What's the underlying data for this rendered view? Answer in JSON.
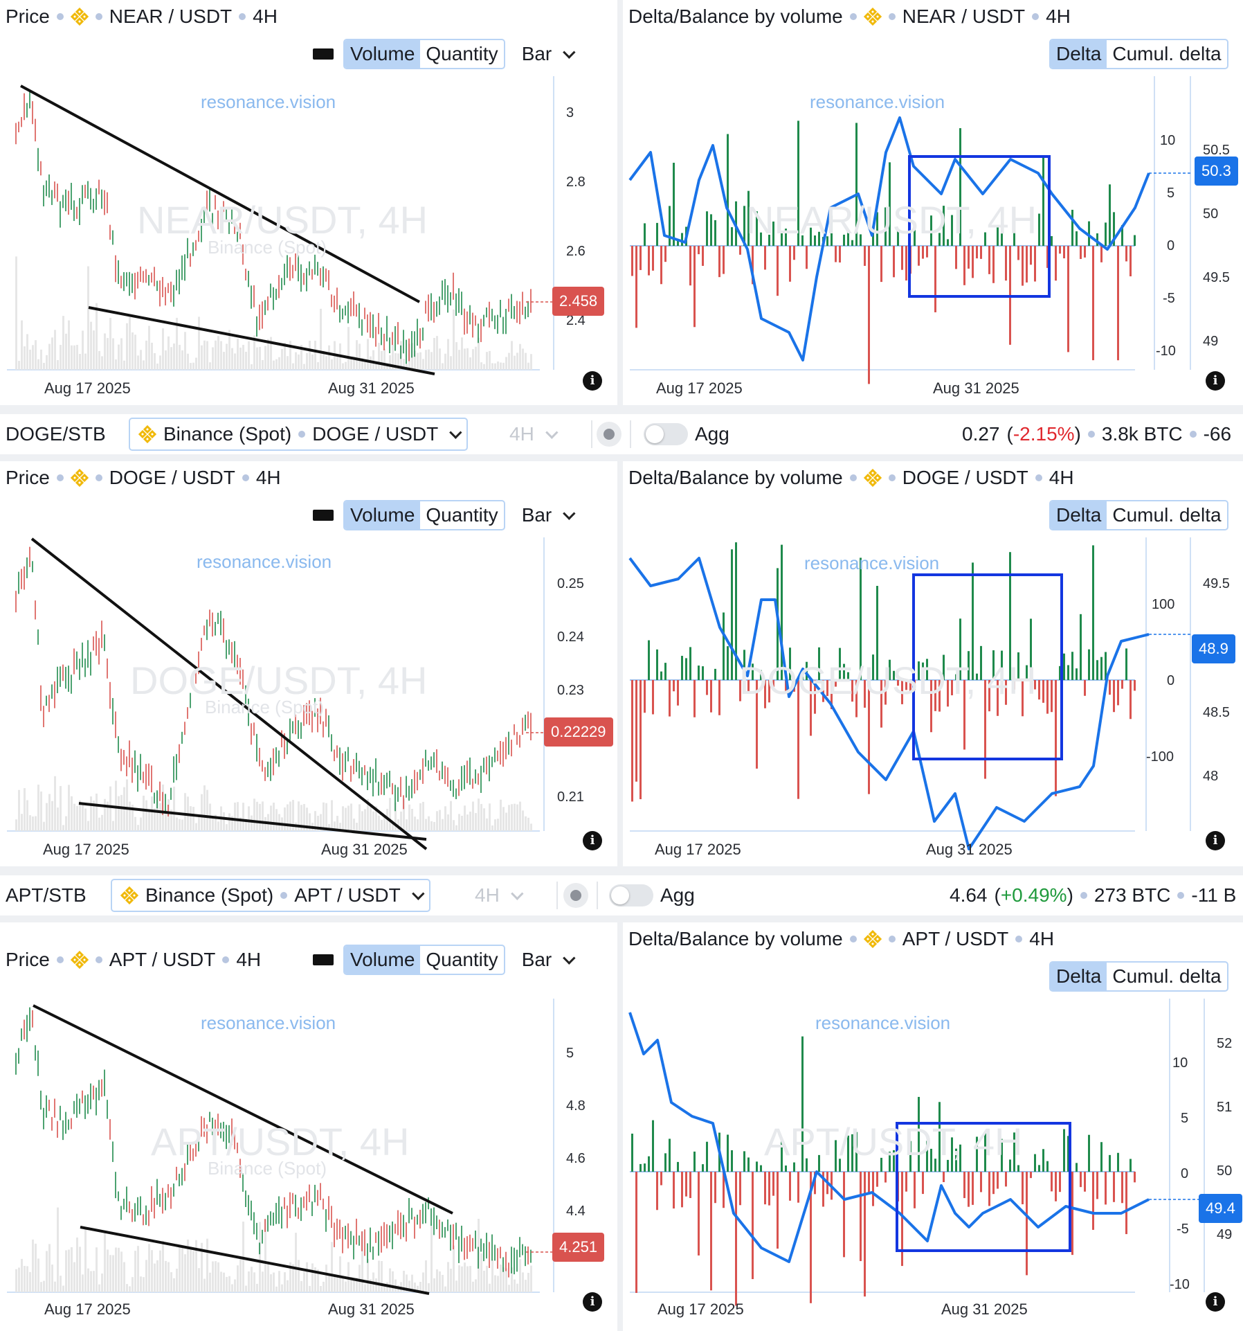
{
  "common": {
    "price_label": "Price",
    "delta_title": "Delta/Balance by volume",
    "timeframe": "4H",
    "volume_label": "Volume",
    "quantity_label": "Quantity",
    "bar_label": "Bar",
    "delta_label": "Delta",
    "cumul_label": "Cumul. delta",
    "watermark": "resonance.vision",
    "exchange_wm": "Binance (Spot)",
    "date1": "Aug 17 2025",
    "date2": "Aug 31 2025",
    "agg_label": "Agg",
    "info_glyph": "i",
    "colors": {
      "up": "#1f8a4c",
      "down": "#d9534f",
      "line": "#1a73e8",
      "box": "#1336e0",
      "accent": "#b9d4f5"
    }
  },
  "rows": [
    {
      "pair": "NEAR / USDT",
      "wm_big": "NEAR/USDT, 4H",
      "price_ticks": [
        "3",
        "2.8",
        "2.6",
        "2.4"
      ],
      "price_tag": "2.458",
      "delta_ticks": [
        "10",
        "5",
        "0",
        "-5",
        "-10"
      ],
      "balance_ticks": [
        "50.5",
        "50",
        "49.5",
        "49"
      ],
      "balance_tag": "50.3"
    },
    {
      "pair": "DOGE / USDT",
      "wm_big": "DOGE/USDT, 4H",
      "price_ticks": [
        "0.25",
        "0.24",
        "0.23",
        "0.21"
      ],
      "price_tag": "0.22229",
      "delta_ticks": [
        "100",
        "0",
        "-100"
      ],
      "balance_ticks": [
        "49.5",
        "48.5",
        "48"
      ],
      "balance_tag": "48.9"
    },
    {
      "pair": "APT / USDT",
      "wm_big": "APT/USDT, 4H",
      "price_ticks": [
        "5",
        "4.8",
        "4.6",
        "4.4"
      ],
      "price_tag": "4.251",
      "delta_ticks": [
        "10",
        "5",
        "0",
        "-5",
        "-10"
      ],
      "balance_ticks": [
        "52",
        "51",
        "50",
        "49"
      ],
      "balance_tag": "49.4"
    }
  ],
  "strips": [
    {
      "symbol": "DOGE/STB",
      "exchange": "Binance (Spot)",
      "pair": "DOGE / USDT",
      "price": "0.27",
      "change": "-2.15%",
      "volume": "3.8k BTC",
      "delta": "-66",
      "sign": "neg"
    },
    {
      "symbol": "APT/STB",
      "exchange": "Binance (Spot)",
      "pair": "APT / USDT",
      "price": "4.64",
      "change": "+0.49%",
      "volume": "273 BTC",
      "delta": "-11 B",
      "sign": "pos"
    }
  ]
}
